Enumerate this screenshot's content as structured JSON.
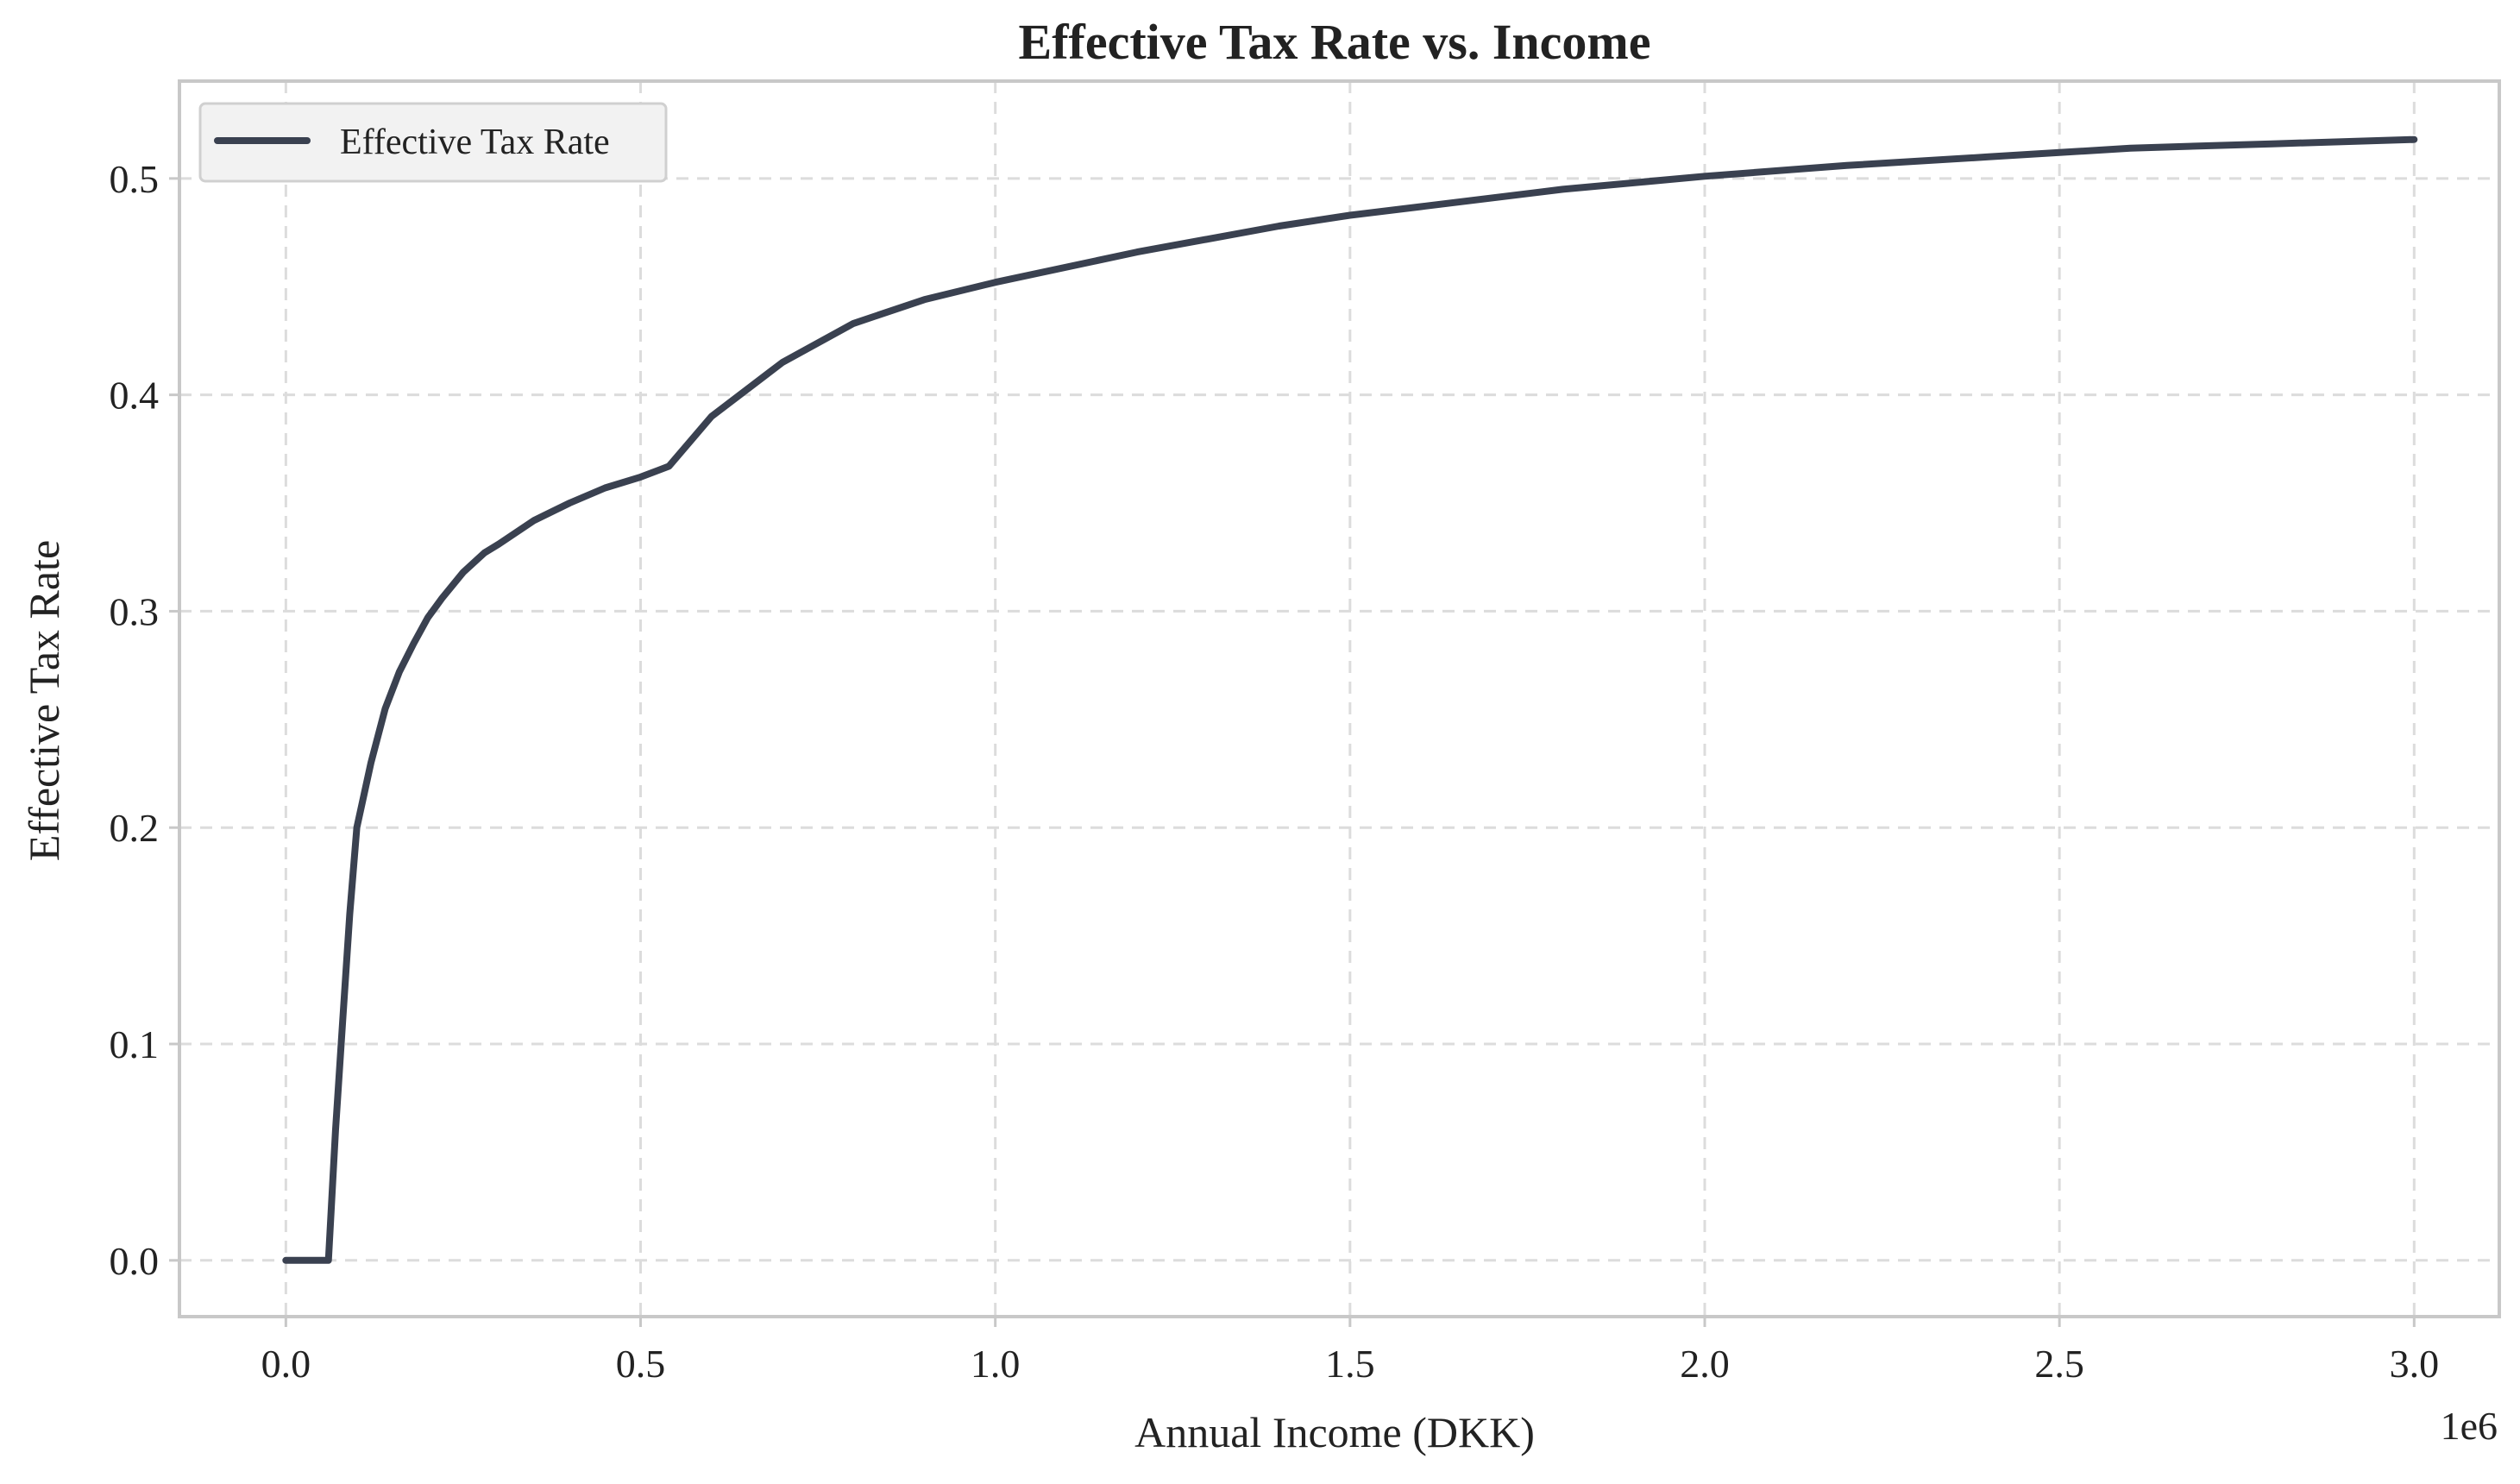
{
  "chart_data": {
    "type": "line",
    "title": "Effective Tax Rate vs. Income",
    "xlabel": "Annual Income (DKK)",
    "ylabel": "Effective Tax Rate",
    "x_offset_label": "1e6",
    "xlim": [
      -0.15,
      3.12
    ],
    "ylim": [
      -0.026,
      0.545
    ],
    "x_scale_note": "x values in millions of DKK (axis multiplier 1e6)",
    "xticks": [
      0.0,
      0.5,
      1.0,
      1.5,
      2.0,
      2.5,
      3.0
    ],
    "xtick_labels": [
      "0.0",
      "0.5",
      "1.0",
      "1.5",
      "2.0",
      "2.5",
      "3.0"
    ],
    "yticks": [
      0.0,
      0.1,
      0.2,
      0.3,
      0.4,
      0.5
    ],
    "ytick_labels": [
      "0.0",
      "0.1",
      "0.2",
      "0.3",
      "0.4",
      "0.5"
    ],
    "grid": true,
    "legend_position": "top-left",
    "series": [
      {
        "name": "Effective Tax Rate",
        "color": "#3a4150",
        "x": [
          0.0,
          0.06,
          0.07,
          0.08,
          0.09,
          0.1,
          0.12,
          0.14,
          0.16,
          0.18,
          0.2,
          0.22,
          0.25,
          0.28,
          0.3,
          0.35,
          0.4,
          0.45,
          0.5,
          0.54,
          0.6,
          0.7,
          0.8,
          0.9,
          1.0,
          1.2,
          1.4,
          1.5,
          1.6,
          1.8,
          2.0,
          2.2,
          2.4,
          2.5,
          2.6,
          2.8,
          3.0
        ],
        "y": [
          0.0,
          0.0,
          0.06,
          0.11,
          0.16,
          0.2,
          0.23,
          0.255,
          0.272,
          0.285,
          0.297,
          0.306,
          0.318,
          0.327,
          0.331,
          0.342,
          0.35,
          0.357,
          0.362,
          0.367,
          0.39,
          0.415,
          0.433,
          0.444,
          0.452,
          0.466,
          0.478,
          0.483,
          0.487,
          0.495,
          0.501,
          0.506,
          0.51,
          0.512,
          0.514,
          0.516,
          0.518
        ]
      }
    ]
  },
  "colors": {
    "line": "#3a4150",
    "grid": "#dcdcdc",
    "spine": "#c8c8c8",
    "legend_bg": "#f2f2f2",
    "legend_border": "#d0d0d0"
  }
}
